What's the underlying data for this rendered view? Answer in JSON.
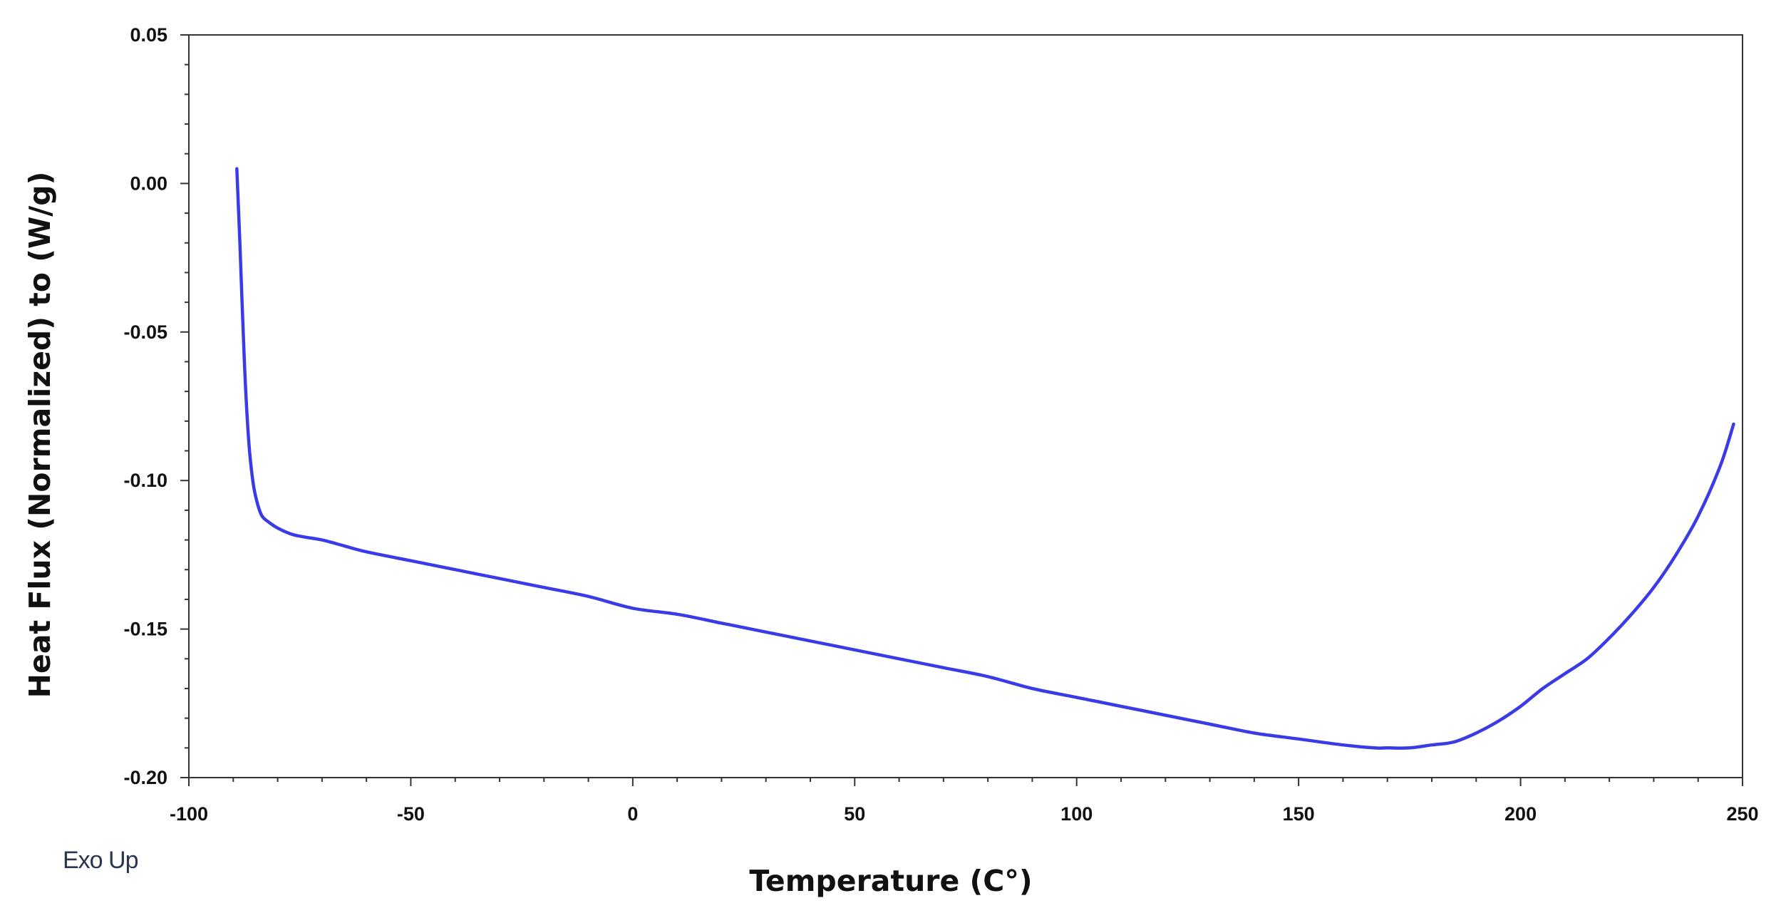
{
  "chart_data": {
    "type": "line",
    "xlabel": "Temperature (C°)",
    "ylabel": "Heat Flux (Normalized) to (W/g)",
    "xlim": [
      -100,
      250
    ],
    "ylim": [
      -0.2,
      0.05
    ],
    "x_ticks": [
      -100,
      -50,
      0,
      50,
      100,
      150,
      200,
      250
    ],
    "x_tick_labels": [
      "-100",
      "-50",
      "0",
      "50",
      "100",
      "150",
      "200",
      "250"
    ],
    "y_ticks": [
      0.05,
      0.0,
      -0.05,
      -0.1,
      -0.15,
      -0.2
    ],
    "y_tick_labels": [
      "0.05",
      "0.00",
      "-0.05",
      "-0.10",
      "-0.15",
      "-0.20"
    ],
    "annotation": "Exo Up",
    "grid": false,
    "legend": "none",
    "line_color": "#3a3ae6",
    "series": [
      {
        "x": [
          -89.2,
          -88.5,
          -87.5,
          -86.5,
          -85.5,
          -84.5,
          -83.5,
          -82,
          -80,
          -77,
          -74,
          -70,
          -65,
          -60,
          -50,
          -40,
          -30,
          -20,
          -10,
          0,
          10,
          20,
          30,
          40,
          50,
          60,
          70,
          80,
          90,
          100,
          110,
          120,
          130,
          140,
          150,
          160,
          167,
          170,
          175,
          180,
          185,
          190,
          195,
          200,
          205,
          210,
          215,
          220,
          225,
          230,
          235,
          240,
          245,
          248
        ],
        "y": [
          0.005,
          -0.02,
          -0.06,
          -0.087,
          -0.101,
          -0.108,
          -0.112,
          -0.114,
          -0.116,
          -0.118,
          -0.119,
          -0.12,
          -0.122,
          -0.124,
          -0.127,
          -0.13,
          -0.133,
          -0.136,
          -0.139,
          -0.143,
          -0.145,
          -0.148,
          -0.151,
          -0.154,
          -0.157,
          -0.16,
          -0.163,
          -0.166,
          -0.17,
          -0.173,
          -0.176,
          -0.179,
          -0.182,
          -0.185,
          -0.187,
          -0.189,
          -0.19,
          -0.19,
          -0.19,
          -0.189,
          -0.188,
          -0.185,
          -0.181,
          -0.176,
          -0.17,
          -0.165,
          -0.16,
          -0.153,
          -0.145,
          -0.136,
          -0.125,
          -0.112,
          -0.095,
          -0.081
        ]
      }
    ]
  }
}
